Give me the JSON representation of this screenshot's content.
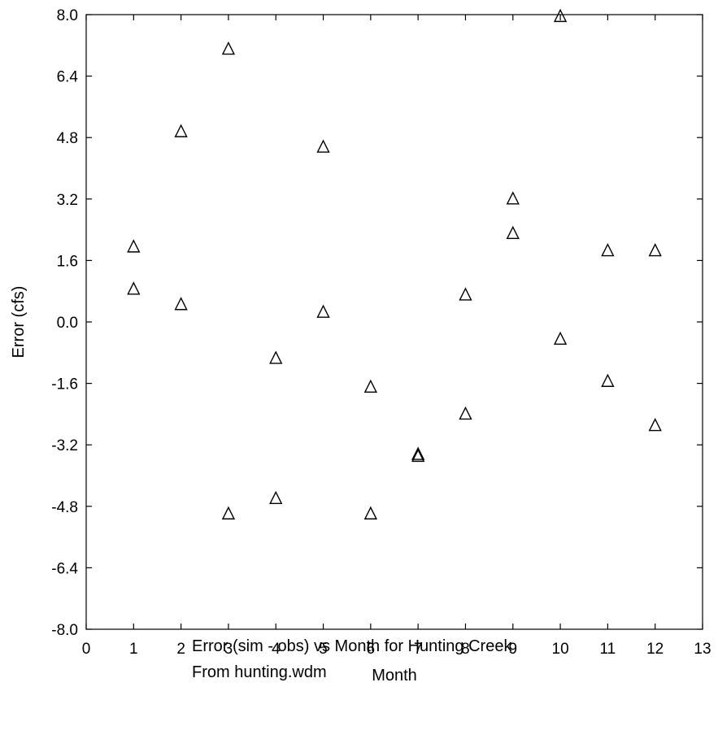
{
  "chart_data": {
    "type": "scatter",
    "xlabel": "Month",
    "ylabel": "Error (cfs)",
    "xlim": [
      0,
      13
    ],
    "ylim": [
      -8.0,
      8.0
    ],
    "xticks": [
      "0",
      "1",
      "2",
      "3",
      "4",
      "5",
      "6",
      "7",
      "8",
      "9",
      "10",
      "11",
      "12",
      "13"
    ],
    "yticks": [
      "8.0",
      "6.4",
      "4.8",
      "3.2",
      "1.6",
      "0.0",
      "-1.6",
      "-3.2",
      "-4.8",
      "-6.4",
      "-8.0"
    ],
    "marker": "triangle",
    "grid": false,
    "series": [
      {
        "points": [
          {
            "x": 1,
            "y": 1.95
          },
          {
            "x": 1,
            "y": 0.85
          },
          {
            "x": 2,
            "y": 4.95
          },
          {
            "x": 2,
            "y": 0.45
          },
          {
            "x": 3,
            "y": 7.1
          },
          {
            "x": 3,
            "y": -5.0
          },
          {
            "x": 4,
            "y": -0.95
          },
          {
            "x": 4,
            "y": -4.6
          },
          {
            "x": 5,
            "y": 4.55
          },
          {
            "x": 5,
            "y": 0.25
          },
          {
            "x": 6,
            "y": -1.7
          },
          {
            "x": 6,
            "y": -5.0
          },
          {
            "x": 7,
            "y": -3.45
          },
          {
            "x": 7,
            "y": -3.5
          },
          {
            "x": 8,
            "y": 0.7
          },
          {
            "x": 8,
            "y": -2.4
          },
          {
            "x": 9,
            "y": 3.2
          },
          {
            "x": 9,
            "y": 2.3
          },
          {
            "x": 10,
            "y": 7.95
          },
          {
            "x": 10,
            "y": -0.45
          },
          {
            "x": 11,
            "y": 1.85
          },
          {
            "x": 11,
            "y": -1.55
          },
          {
            "x": 12,
            "y": 1.85
          },
          {
            "x": 12,
            "y": -2.7
          }
        ]
      }
    ]
  },
  "caption": {
    "line1": "Error (sim - obs) vs Month for Hunting Creek",
    "line2": "From hunting.wdm"
  }
}
